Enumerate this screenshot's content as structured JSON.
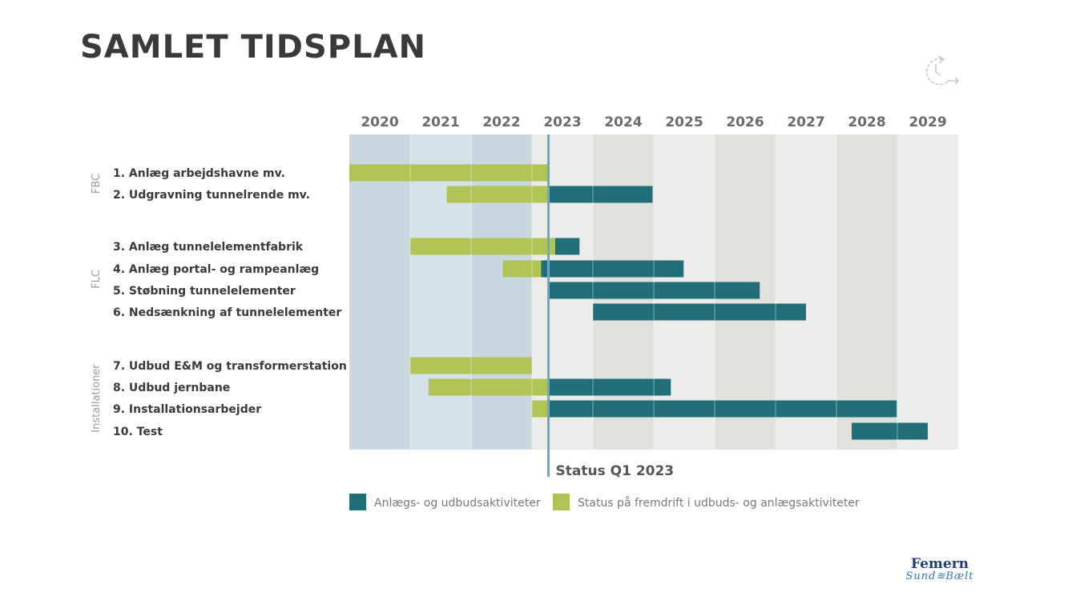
{
  "page": {
    "title": "SAMLET TIDSPLAN"
  },
  "logo": {
    "line1": "Femern",
    "line2": "Sund≋Bælt"
  },
  "chart_data": {
    "type": "gantt",
    "years": [
      "2020",
      "2021",
      "2022",
      "2023",
      "2024",
      "2025",
      "2026",
      "2027",
      "2028",
      "2029"
    ],
    "status": {
      "label": "Status Q1 2023",
      "date": 2023.27
    },
    "groups": [
      {
        "name": "FBC",
        "tasks": [
          0,
          1
        ]
      },
      {
        "name": "FLC",
        "tasks": [
          2,
          3,
          4,
          5
        ]
      },
      {
        "name": "Installationer",
        "tasks": [
          6,
          7,
          8,
          9
        ]
      }
    ],
    "tasks": [
      {
        "label": "1. Anlæg arbejdshavne mv.",
        "progress": [
          2020.0,
          2023.27
        ],
        "activity": null
      },
      {
        "label": "2. Udgravning tunnelrende mv.",
        "progress": [
          2021.6,
          2023.27
        ],
        "activity": [
          2023.27,
          2024.98
        ]
      },
      {
        "label": "3. Anlæg tunnelelementfabrik",
        "progress": [
          2021.0,
          2023.38
        ],
        "activity": [
          2023.38,
          2023.78
        ]
      },
      {
        "label": "4. Anlæg portal- og rampeanlæg",
        "progress": [
          2022.52,
          2023.15
        ],
        "activity": [
          2023.15,
          2025.49
        ]
      },
      {
        "label": "5. Støbning tunnelelementer",
        "progress": null,
        "activity": [
          2023.27,
          2026.74
        ]
      },
      {
        "label": "6. Nedsænkning af tunnelelementer",
        "progress": null,
        "activity": [
          2024.0,
          2027.5
        ]
      },
      {
        "label": "7. Udbud E&M og transformerstation",
        "progress": [
          2021.0,
          2023.0
        ],
        "activity": null
      },
      {
        "label": "8. Udbud jernbane",
        "progress": [
          2021.3,
          2023.27
        ],
        "activity": [
          2023.27,
          2025.28
        ]
      },
      {
        "label": "9. Installationsarbejder",
        "progress": [
          2023.0,
          2023.27
        ],
        "activity": [
          2023.27,
          2028.99
        ]
      },
      {
        "label": "10. Test",
        "progress": null,
        "activity": [
          2028.25,
          2029.5
        ]
      }
    ],
    "legend": [
      {
        "label": "Anlægs- og udbudsaktiviteter",
        "color": "#1f6e78"
      },
      {
        "label": "Status på fremdrift i udbuds- og anlægsaktiviteter",
        "color": "#afc454"
      }
    ],
    "colors": {
      "activity": "#1f6e78",
      "progress": "#afc454",
      "status_line": "#6fa4cf",
      "past_band_a": "#c9d7de",
      "past_band_b": "#d6e2e7",
      "future_band_a": "#ececea",
      "future_band_b": "#e0e0dd"
    }
  }
}
